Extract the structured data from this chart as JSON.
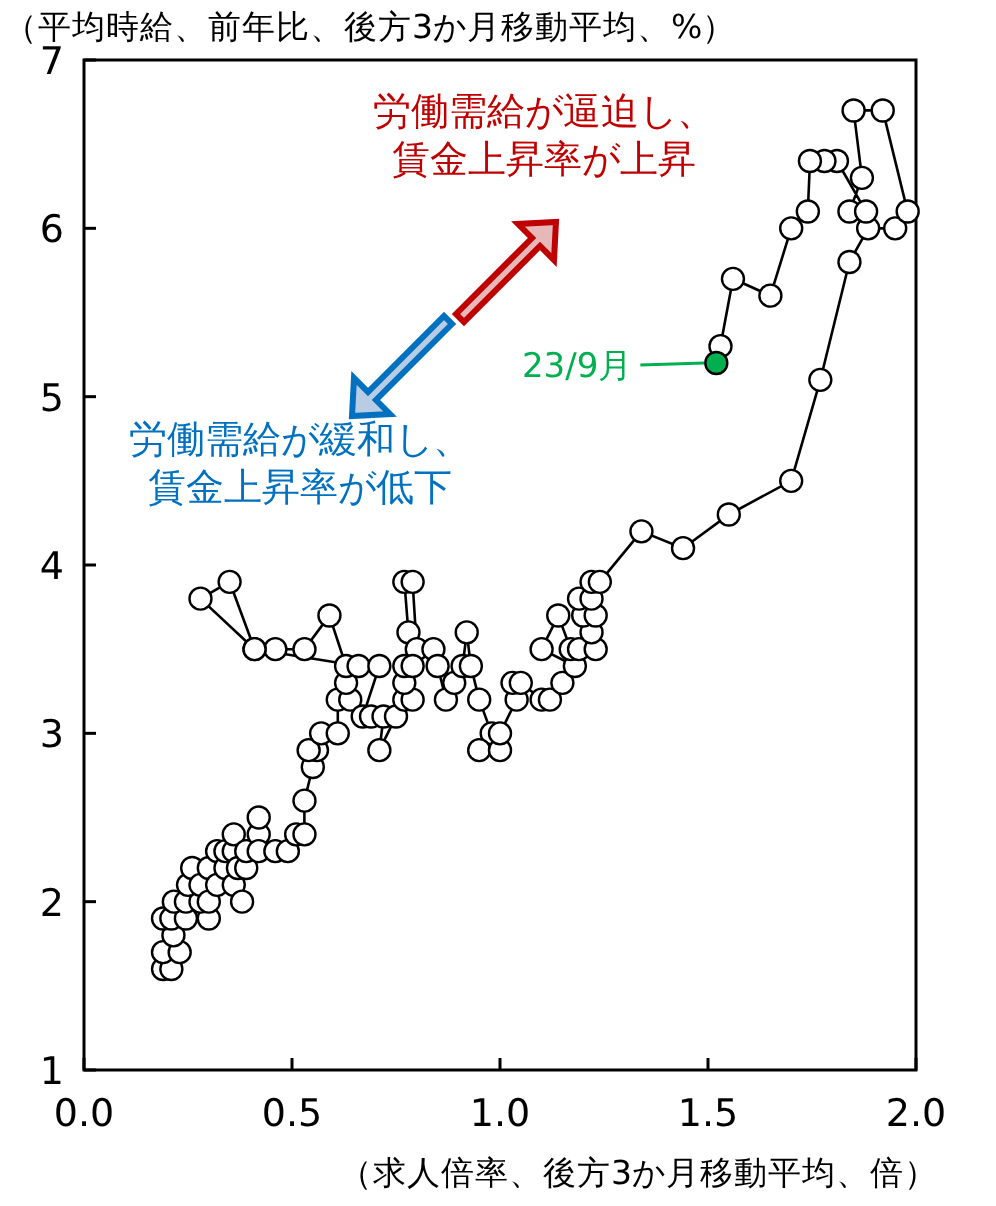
{
  "chart_data": {
    "type": "line",
    "ylabel": "（平均時給、前年比、後方3か月移動平均、%）",
    "xlabel": "（求人倍率、後方3か月移動平均、倍）",
    "xlim": [
      0,
      2
    ],
    "ylim": [
      1,
      7
    ],
    "xticks": [
      {
        "value": 0,
        "label": "0.0"
      },
      {
        "value": 0.5,
        "label": "0.5"
      },
      {
        "value": 1,
        "label": "1.0"
      },
      {
        "value": 1.5,
        "label": "1.5"
      },
      {
        "value": 2,
        "label": "2.0"
      }
    ],
    "yticks": [
      1,
      2,
      3,
      4,
      5,
      6,
      7
    ],
    "grid": false,
    "marker": "circle",
    "line_style": "solid",
    "annotations": [
      "労働需給が逼迫し、",
      "賃金上昇率が上昇",
      "労働需給が緩和し、",
      "賃金上昇率が低下",
      {
        "text": "23/9月",
        "x": 1.52,
        "y": 5.2
      }
    ],
    "series": [
      {
        "color": "#000000",
        "x": [
          0.19,
          0.21,
          0.19,
          0.23,
          0.215,
          0.19,
          0.21,
          0.245,
          0.216,
          0.245,
          0.3,
          0.28,
          0.25,
          0.26,
          0.28,
          0.3,
          0.3,
          0.32,
          0.32,
          0.34,
          0.36,
          0.34,
          0.36,
          0.38,
          0.37,
          0.39,
          0.36,
          0.39,
          0.42,
          0.42,
          0.42,
          0.46,
          0.49,
          0.51,
          0.53,
          0.53,
          0.55,
          0.56,
          0.54,
          0.57,
          0.61,
          0.61,
          0.64,
          0.63,
          0.63,
          0.59,
          0.53,
          0.46,
          0.41,
          0.35,
          0.28,
          0.41,
          0.66,
          0.71,
          0.67,
          0.69,
          0.72,
          0.71,
          0.75,
          0.77,
          0.79,
          0.77,
          0.78,
          0.77,
          0.79,
          0.8,
          0.77,
          0.79,
          0.84,
          0.85,
          0.87,
          0.89,
          0.91,
          0.92,
          0.93,
          0.95,
          0.98,
          0.95,
          1.0,
          1.0,
          1.04,
          1.03,
          1.05,
          1.1,
          1.12,
          1.15,
          1.18,
          1.1,
          1.14,
          1.17,
          1.19,
          1.23,
          1.22,
          1.2,
          1.23,
          1.19,
          1.22,
          1.22,
          1.24,
          1.34,
          1.44,
          1.55,
          1.7,
          1.77,
          1.84,
          1.885,
          1.95,
          1.98,
          1.92,
          1.85,
          1.87,
          1.84,
          1.88,
          1.81,
          1.78,
          1.745,
          1.74,
          1.7,
          1.65,
          1.56,
          1.53,
          1.52
        ],
        "values": [
          1.6,
          1.6,
          1.7,
          1.7,
          1.8,
          1.9,
          1.9,
          1.9,
          2.0,
          2.0,
          1.9,
          2.0,
          2.1,
          2.2,
          2.1,
          2.0,
          2.2,
          2.1,
          2.3,
          2.2,
          2.1,
          2.3,
          2.3,
          2.0,
          2.2,
          2.2,
          2.4,
          2.3,
          2.4,
          2.5,
          2.3,
          2.3,
          2.3,
          2.4,
          2.4,
          2.6,
          2.8,
          2.9,
          2.9,
          3.0,
          3.0,
          3.2,
          3.2,
          3.3,
          3.4,
          3.7,
          3.5,
          3.5,
          3.5,
          3.9,
          3.8,
          3.5,
          3.4,
          3.4,
          3.1,
          3.1,
          3.1,
          2.9,
          3.1,
          3.2,
          3.2,
          3.3,
          3.6,
          3.9,
          3.9,
          3.5,
          3.4,
          3.4,
          3.5,
          3.4,
          3.2,
          3.3,
          3.4,
          3.6,
          3.4,
          3.2,
          3.0,
          2.9,
          2.9,
          3.0,
          3.2,
          3.3,
          3.3,
          3.2,
          3.2,
          3.3,
          3.4,
          3.5,
          3.7,
          3.5,
          3.5,
          3.5,
          3.6,
          3.7,
          3.7,
          3.8,
          3.8,
          3.9,
          3.9,
          4.2,
          4.1,
          4.3,
          4.5,
          5.1,
          5.8,
          6.0,
          6.0,
          6.1,
          6.7,
          6.7,
          6.3,
          6.1,
          6.1,
          6.4,
          6.4,
          6.4,
          6.1,
          6.0,
          5.6,
          5.7,
          5.3,
          5.2
        ]
      }
    ]
  }
}
